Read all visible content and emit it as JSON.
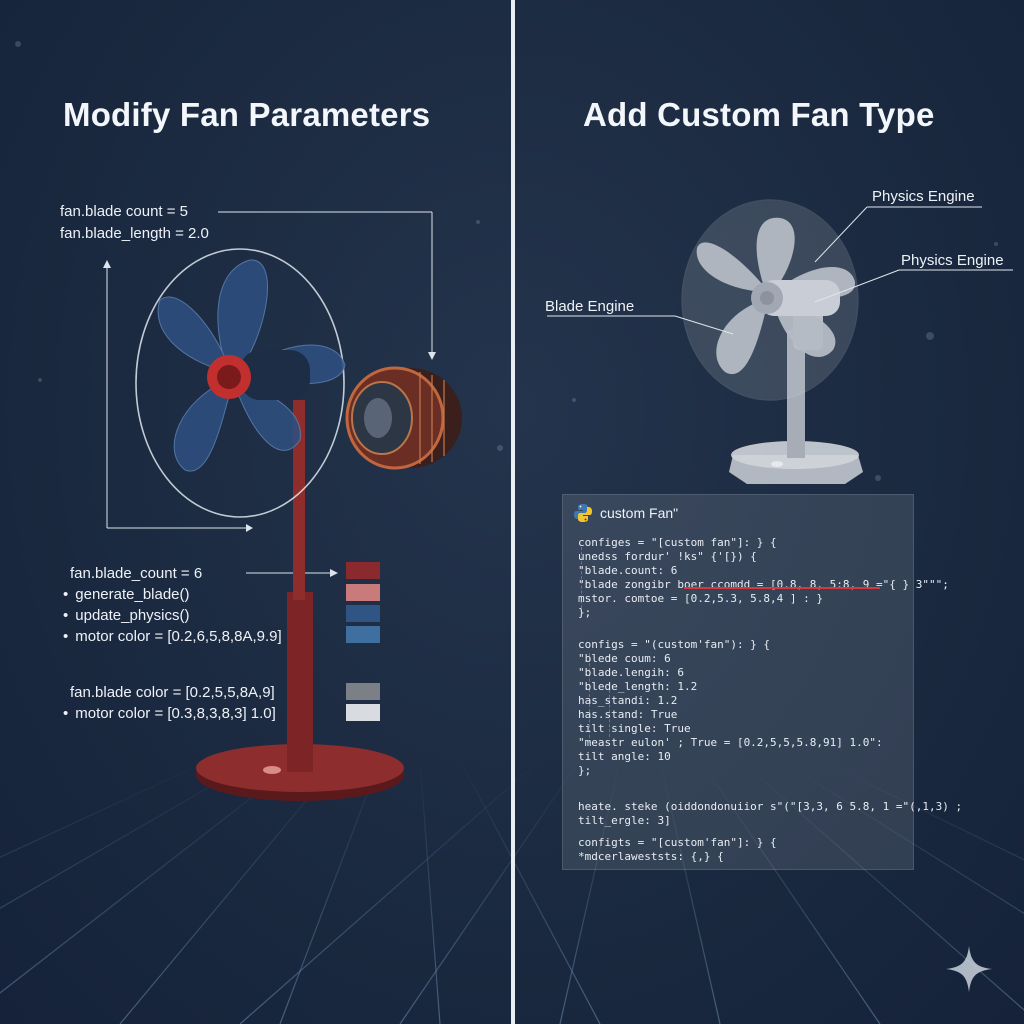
{
  "left": {
    "title": "Modify Fan Parameters",
    "top_params": [
      "fan.blade count = 5",
      "fan.blade_length = 2.0"
    ],
    "mid_label": "fan.blade_count = 6",
    "mid_bullets": [
      "generate_blade()",
      "update_physics()",
      "motor color = [0.2,6,5,8,8A,9.9]"
    ],
    "low_label": "fan.blade color = [0.2,5,5,8A,9]",
    "low_bullets": [
      "motor color = [0.3,8,3,8,3] 1.0]"
    ],
    "swatches_top": [
      "#8a2a2e",
      "#c97a7a",
      "#2f5585",
      "#3e6f9e"
    ],
    "swatches_bottom": [
      "#7b7f86",
      "#d8dbe0"
    ]
  },
  "right": {
    "title": "Add Custom Fan Type",
    "callouts": [
      "Physics Engine",
      "Physics Engine",
      "Blade Engine"
    ],
    "code": {
      "header": "custom Fan\"",
      "lines": [
        "configes = \"[custom fan\"]: } {",
        "  unedss fordur' !ks\" {'[}) {",
        "    \"blade.count: 6",
        "     \"blade zongibr boer ccomdd = [0.8, 8, 5:8, 9 =\"{ } 3\"\"\";",
        "      mstor. comtoe = [0.2,5.3, 5.8,4 ] : }",
        "  };",
        "",
        "configs = \"(custom'fan\"): } {",
        "  \"blede coum: 6",
        "    \"blade.lengih: 6",
        "      \"blede_length: 1.2",
        "        has_standi: 1.2",
        "        has.stand: True",
        "        tilt single: True",
        "     \"meastr eulon' ; True = [0.2,5,5,5.8,91] 1.0\":",
        "        tilt angle: 10",
        "  };",
        "",
        "",
        "   heate. steke (oiddondonuiior s\"(\"[3,3, 6 5.8, 1 =\"(,1,3) ;",
        "     tilt_ergle: 3]",
        "configts = \"[custom'fan\"]: } {",
        "    *mdcerlaweststs: {,} {"
      ]
    }
  },
  "colors": {
    "background": "#1b2a40",
    "accent_red": "#8a2a2e",
    "accent_blue": "#2f5585",
    "divider": "#e9eef5"
  }
}
